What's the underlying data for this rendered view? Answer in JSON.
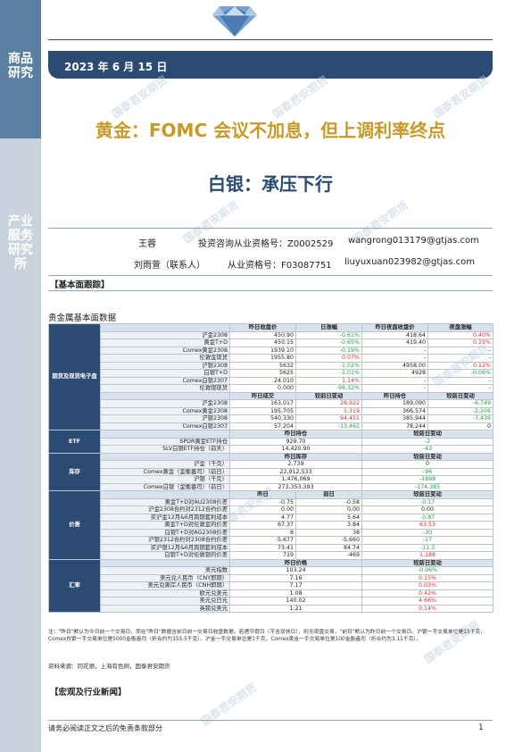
{
  "sidebar": {
    "top_label": "商品研究",
    "bottom_label": "产业服务研究所"
  },
  "header": {
    "date": "2023 年 6 月 15 日"
  },
  "titles": {
    "line1": "黄金：FOMC 会议不加息，但上调利率终点",
    "line2": "白银：承压下行"
  },
  "watermark": "国泰君安期货",
  "authors": [
    {
      "name": "王蓉",
      "cert_label": "投资咨询从业资格号：Z0002529",
      "email": "wangrong013179@gtjas.com"
    },
    {
      "name": "刘雨萱（联系人）",
      "cert_label": "从业资格号：F03087751",
      "email": "liuyuxuan023982@gtjas.com"
    }
  ],
  "sections": {
    "fundamentals": "【基本面跟踪】",
    "table_title": "贵金属基本面数据",
    "macro": "【宏观及行业新闻】"
  },
  "table": {
    "g1": {
      "label": "期货及现货电子盘",
      "headers": [
        "",
        "昨日收盘价",
        "日涨幅",
        "昨日夜盘收盘价",
        "夜盘涨幅"
      ],
      "rows": [
        [
          "沪金2308",
          "450.90",
          "-0.61%",
          "418.64",
          "0.40%"
        ],
        [
          "黄金T+D",
          "450.15",
          "-0.65%",
          "419.40",
          "0.25%"
        ],
        [
          "Comex黄金2308",
          "1939.10",
          "-0.19%",
          "-",
          "-"
        ],
        [
          "伦敦金现货",
          "1955.80",
          "0.07%",
          "-",
          "-"
        ],
        [
          "沪银2308",
          "5632",
          "-1.02%",
          "4958.00",
          "0.12%"
        ],
        [
          "白银T+D",
          "5625",
          "-1.01%",
          "4928",
          "-0.06%"
        ],
        [
          "Comex白银2307",
          "24.010",
          "1.14%",
          "-",
          "-"
        ],
        [
          "伦敦银现货",
          "0.000",
          "-98.32%",
          "-",
          "-"
        ]
      ],
      "headers2": [
        "",
        "昨日成交",
        "较前日变动",
        "昨日持仓",
        "较前日变动"
      ],
      "rows2": [
        [
          "沪金2308",
          "163,017",
          "28,922",
          "189,090",
          "-6,749"
        ],
        [
          "Comex黄金2308",
          "195,705",
          "1,319",
          "366,574",
          "-2,206"
        ],
        [
          "沪银2308",
          "540,330",
          "94,451",
          "385,944",
          "-7,436"
        ],
        [
          "Comex白银2307",
          "57,204",
          "-13,462",
          "78,244",
          "0"
        ]
      ]
    },
    "g2": {
      "label": "ETF",
      "headers": [
        "",
        "昨日持仓",
        "较前日变动"
      ],
      "rows": [
        [
          "SPDR黄金ETF持仓",
          "929.70",
          "-2"
        ],
        [
          "SLV白银ETF持仓（前天）",
          "14,420.90",
          "-43"
        ]
      ]
    },
    "g3": {
      "label": "库存",
      "headers": [
        "",
        "昨日库存",
        "较前日变动"
      ],
      "rows": [
        [
          "沪金（千克）",
          "2,739",
          "0"
        ],
        [
          "Comex黄金（金衡盎司）（前日）",
          "22,912,533",
          "-96"
        ],
        [
          "沪银（千克）",
          "1,476,069",
          "-1898"
        ],
        [
          "Comex白银（金衡盎司）（前日）",
          "273,353,393",
          "-174,385"
        ]
      ]
    },
    "g4": {
      "label": "价差",
      "headers": [
        "",
        "昨日",
        "前日",
        "较前日变动"
      ],
      "rows": [
        [
          "黄金T+D对AU2308价差",
          "-0.75",
          "-0.58",
          "-0.17"
        ],
        [
          "沪金2308合约对2312合约价差",
          "0.00",
          "0.00",
          "0.00"
        ],
        [
          "买沪金12月&6月跨期套利成本",
          "4.77",
          "5.64",
          "-0.87"
        ],
        [
          "黄金T+D对伦敦金的价差",
          "67.37",
          "3.84",
          "63.53"
        ],
        [
          "白银T+D对AG2308价差",
          "8",
          "38",
          "-30"
        ],
        [
          "沪银2312合约对2308合约价差",
          "-5,677",
          "-5,660",
          "-17"
        ],
        [
          "买沪银12月&6月跨期套利成本",
          "73.41",
          "84.74",
          "-11.3"
        ],
        [
          "白银T+D对伦敦银的价差",
          "719",
          "-469",
          "1,188"
        ]
      ]
    },
    "g5": {
      "label": "汇率",
      "headers": [
        "",
        "昨日价格",
        "较前日变动"
      ],
      "rows": [
        [
          "美元指数",
          "103.24",
          "-0.06%"
        ],
        [
          "美元兑人民币（CNY即期）",
          "7.16",
          "0.15%"
        ],
        [
          "美元兑离岸人民币（CNH即期）",
          "7.17",
          "0.03%"
        ],
        [
          "欧元兑美元",
          "1.08",
          "0.42%"
        ],
        [
          "美元兑日元",
          "140.02",
          "4.66%"
        ],
        [
          "英镑兑美元",
          "1.21",
          "0.14%"
        ]
      ]
    }
  },
  "note": "注：\"昨日\"默认为今日前一个交易日，而在\"昨日\"数据含前日前一交易日收盘数据，若遇节假日（不含双休日），则无夜盘交易，\"前日\"默认为昨日前一个交易日。沪银一手交易单位是15千克，Comex白银一手交易单位是5000金衡盎司（折合约为155.5千克）。沪金一手交易单位是1千克，Comex黄金一手交易单位是100金衡盎司（折合约为3.11千克）。",
  "source": "资料来源：同花顺，上海有色网，国泰君安期货",
  "footer": {
    "disclaimer": "请务必阅读正文之后的免责条款部分",
    "page": "1"
  }
}
